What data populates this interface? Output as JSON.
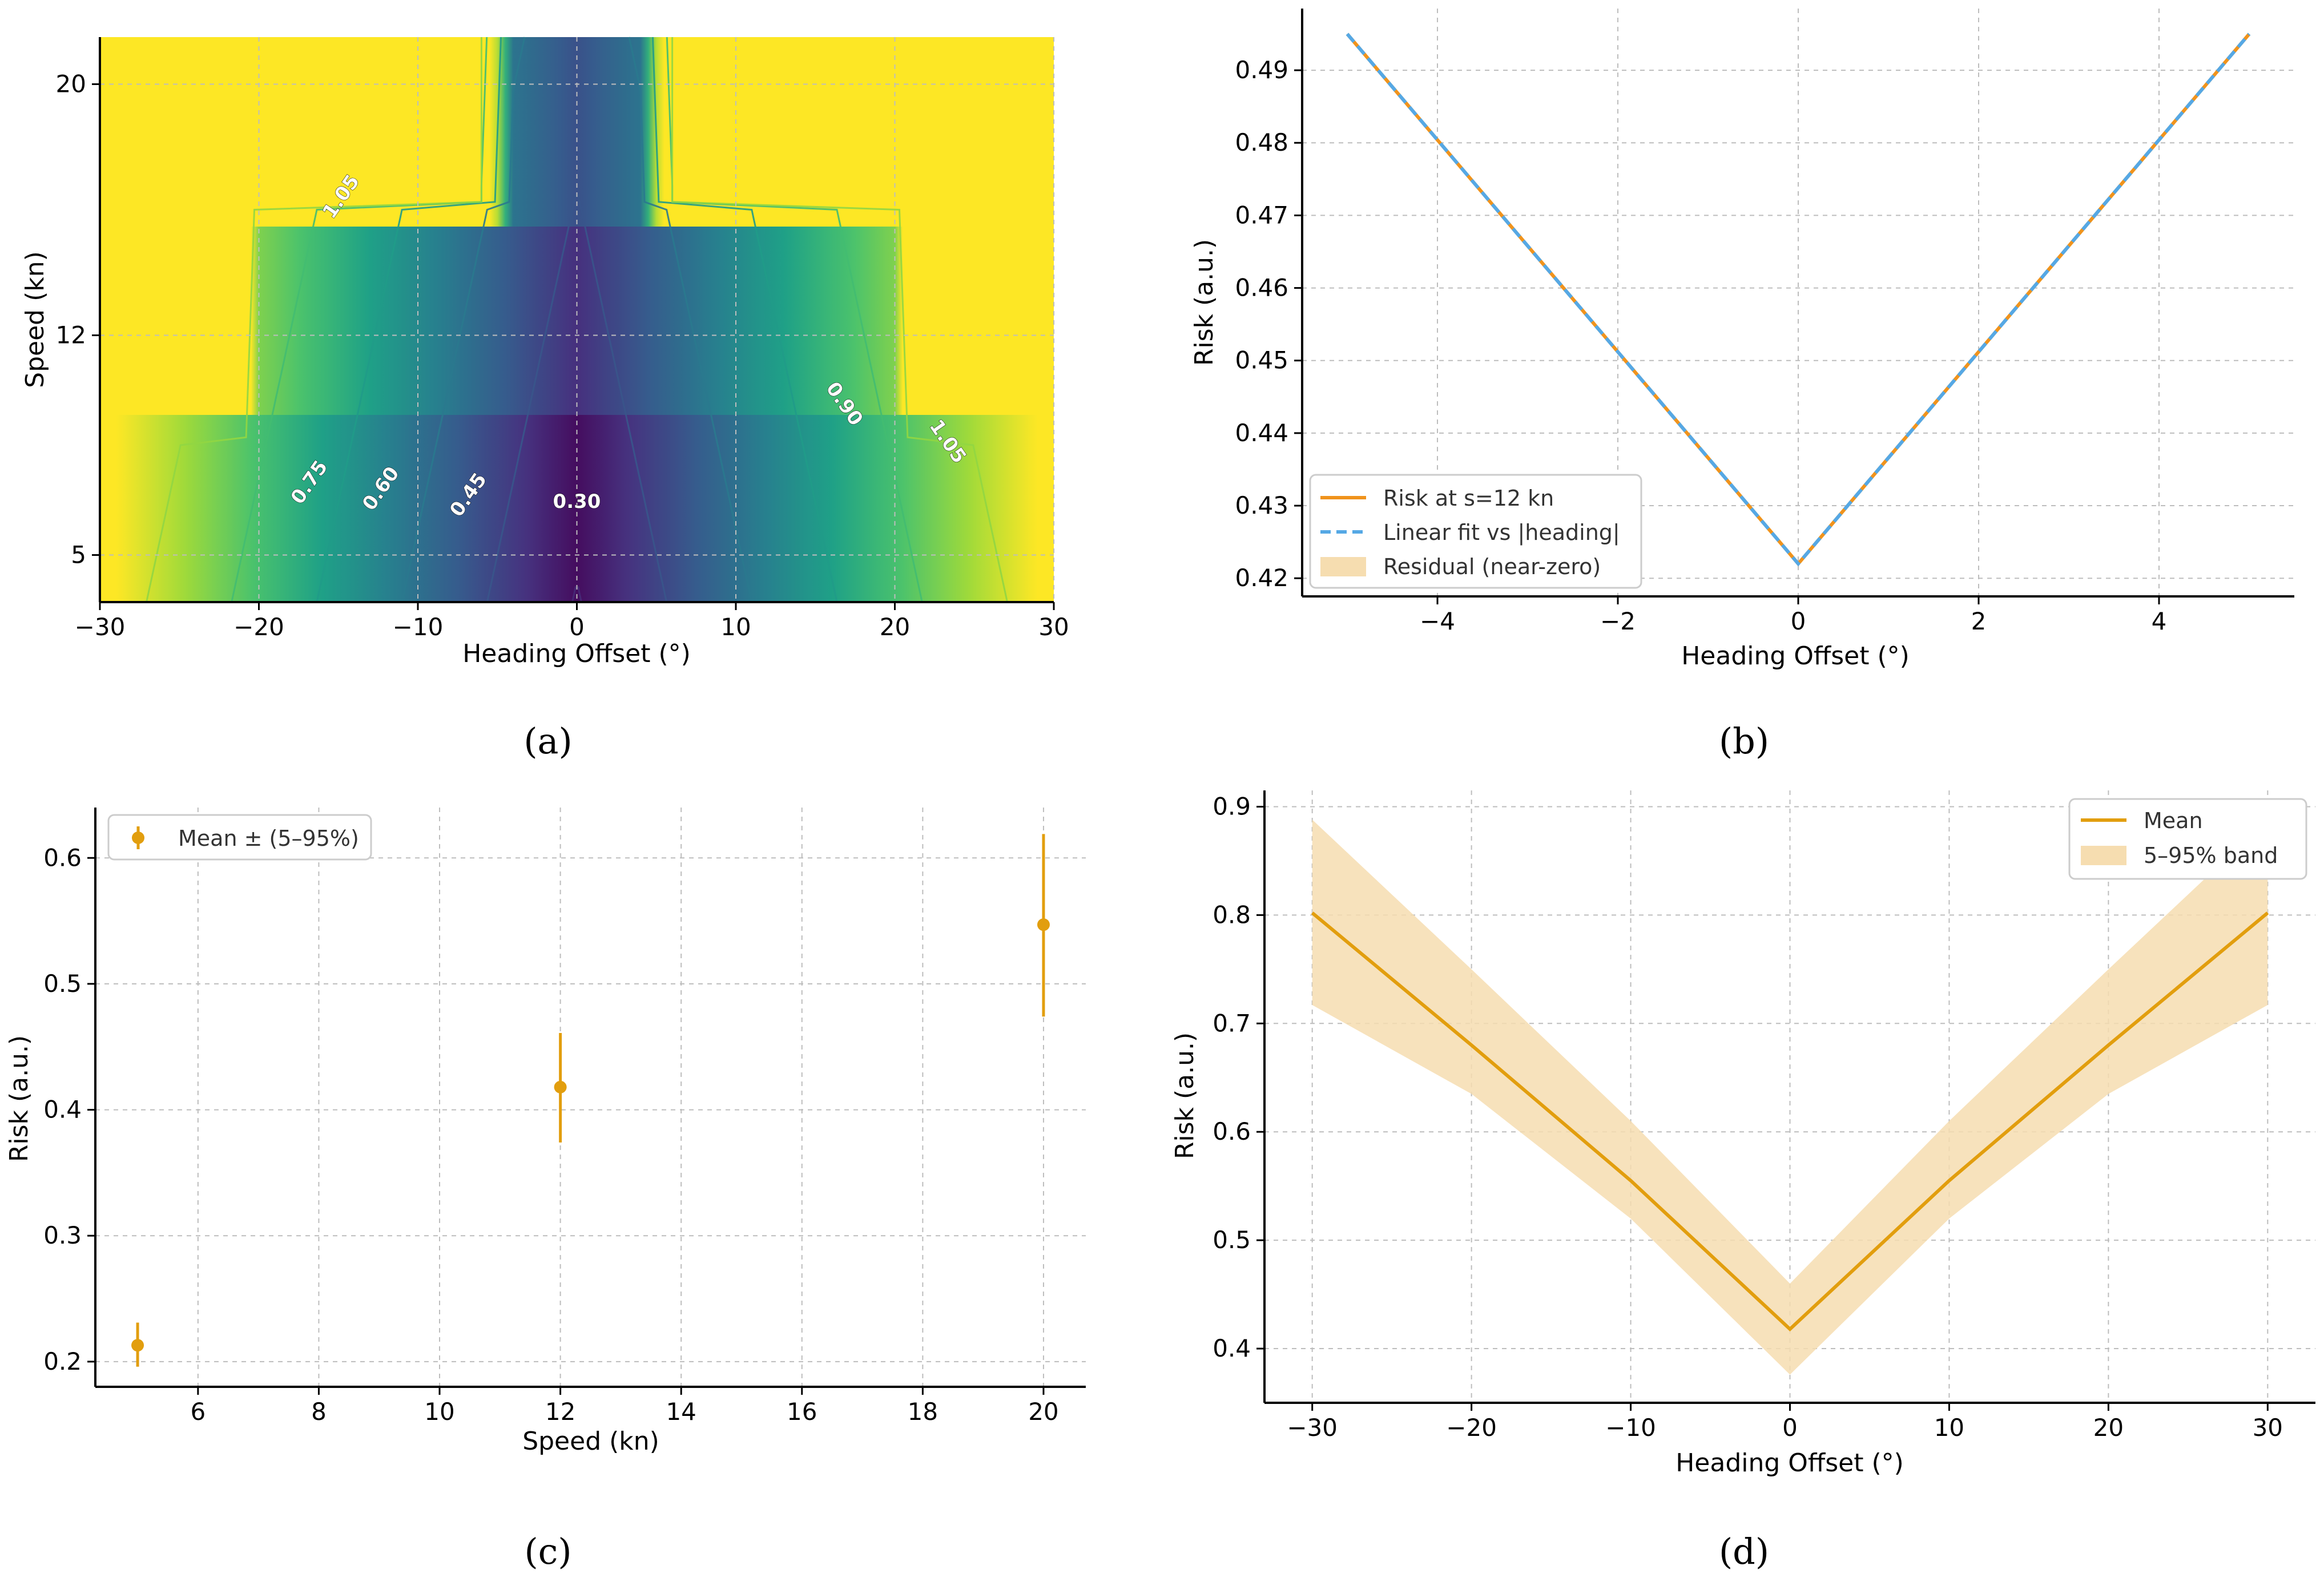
{
  "chart_data": [
    {
      "panel": "a",
      "type": "heatmap",
      "caption": "(a)",
      "xlabel": "Heading Offset (°)",
      "ylabel": "Speed (kn)",
      "xlim": [
        -30,
        30
      ],
      "ylim": [
        3.5,
        21.5
      ],
      "xticks": [
        -30,
        -20,
        -10,
        0,
        10,
        20,
        30
      ],
      "xtick_labels": [
        "−30",
        "−20",
        "−10",
        "0",
        "10",
        "20",
        "30"
      ],
      "yticks": [
        5,
        12,
        20
      ],
      "ytick_labels": [
        "5",
        "12",
        "20"
      ],
      "speed_bands": [
        {
          "speed": 5,
          "y_from": 3.5,
          "y_to": 8.5,
          "flat_beyond_heading": 30
        },
        {
          "speed": 12,
          "y_from": 8.5,
          "y_to": 16,
          "flat_beyond_heading": 20
        },
        {
          "speed": 20,
          "y_from": 16,
          "y_to": 21.5,
          "flat_beyond_heading": 4
        }
      ],
      "colormap": "viridis",
      "contour_levels": [
        0.3,
        0.45,
        0.6,
        0.75,
        0.9,
        1.05
      ],
      "contour_labels": [
        {
          "text": "0.30",
          "heading": 0,
          "speed": 6.5
        },
        {
          "text": "0.45",
          "heading": -6.5,
          "speed": 6.8
        },
        {
          "text": "0.60",
          "heading": -12,
          "speed": 7
        },
        {
          "text": "0.75",
          "heading": -16.5,
          "speed": 7.2
        },
        {
          "text": "1.05",
          "heading": -14.5,
          "speed": 16.3
        },
        {
          "text": "0.90",
          "heading": 16.5,
          "speed": 9.7
        },
        {
          "text": "1.05",
          "heading": 23,
          "speed": 8.5
        }
      ]
    },
    {
      "panel": "b",
      "type": "line",
      "caption": "(b)",
      "xlabel": "Heading Offset (°)",
      "ylabel": "Risk (a.u.)",
      "xlim": [
        -5.5,
        5.5
      ],
      "ylim": [
        0.4175,
        0.4985
      ],
      "xticks": [
        -4,
        -2,
        0,
        2,
        4
      ],
      "xtick_labels": [
        "−4",
        "−2",
        "0",
        "2",
        "4"
      ],
      "yticks": [
        0.42,
        0.43,
        0.44,
        0.45,
        0.46,
        0.47,
        0.48,
        0.49
      ],
      "ytick_labels": [
        "0.42",
        "0.43",
        "0.44",
        "0.45",
        "0.46",
        "0.47",
        "0.48",
        "0.49"
      ],
      "series": [
        {
          "name": "Risk at s=12 kn",
          "color": "#f0931c",
          "style": "solid",
          "x": [
            -5,
            0,
            5
          ],
          "y": [
            0.495,
            0.422,
            0.495
          ]
        },
        {
          "name": "Linear fit vs |heading|",
          "color": "#55a8e5",
          "style": "dashed",
          "x": [
            -5,
            0,
            5
          ],
          "y": [
            0.495,
            0.422,
            0.495
          ]
        },
        {
          "name": "Residual (near-zero)",
          "color": "#f6ddb0",
          "style": "band"
        }
      ],
      "legend_position": "lower-left"
    },
    {
      "panel": "c",
      "type": "scatter",
      "caption": "(c)",
      "xlabel": "Speed (kn)",
      "ylabel": "Risk (a.u.)",
      "xlim": [
        4.3,
        20.7
      ],
      "ylim": [
        0.18,
        0.64
      ],
      "xticks": [
        6,
        8,
        10,
        12,
        14,
        16,
        18,
        20
      ],
      "xtick_labels": [
        "6",
        "8",
        "10",
        "12",
        "14",
        "16",
        "18",
        "20"
      ],
      "yticks": [
        0.2,
        0.3,
        0.4,
        0.5,
        0.6
      ],
      "ytick_labels": [
        "0.2",
        "0.3",
        "0.4",
        "0.5",
        "0.6"
      ],
      "series": [
        {
          "name": "Mean ± (5–95%)",
          "color": "#e29e0e",
          "points": [
            {
              "x": 5,
              "mean": 0.213,
              "low": 0.196,
              "high": 0.231
            },
            {
              "x": 12,
              "mean": 0.418,
              "low": 0.374,
              "high": 0.461
            },
            {
              "x": 20,
              "mean": 0.547,
              "low": 0.474,
              "high": 0.619
            }
          ]
        }
      ],
      "legend_position": "upper-left"
    },
    {
      "panel": "d",
      "type": "area",
      "caption": "(d)",
      "xlabel": "Heading Offset (°)",
      "ylabel": "Risk (a.u.)",
      "xlim": [
        -33,
        33
      ],
      "ylim": [
        0.35,
        0.915
      ],
      "xticks": [
        -30,
        -20,
        -10,
        0,
        10,
        20,
        30
      ],
      "xtick_labels": [
        "−30",
        "−20",
        "−10",
        "0",
        "10",
        "20",
        "30"
      ],
      "yticks": [
        0.4,
        0.5,
        0.6,
        0.7,
        0.8,
        0.9
      ],
      "ytick_labels": [
        "0.4",
        "0.5",
        "0.6",
        "0.7",
        "0.8",
        "0.9"
      ],
      "series": [
        {
          "name": "Mean",
          "color": "#e29e0e",
          "x": [
            -30,
            -20,
            -10,
            0,
            10,
            20,
            30
          ],
          "y": [
            0.802,
            0.68,
            0.555,
            0.418,
            0.555,
            0.68,
            0.802
          ]
        },
        {
          "name": "5–95% band",
          "color": "#f6ddb0",
          "x": [
            -30,
            -20,
            -10,
            0,
            10,
            20,
            30
          ],
          "low": [
            0.717,
            0.635,
            0.52,
            0.376,
            0.52,
            0.635,
            0.717
          ],
          "high": [
            0.888,
            0.75,
            0.61,
            0.46,
            0.61,
            0.75,
            0.888
          ]
        }
      ],
      "legend_position": "upper-right"
    }
  ]
}
